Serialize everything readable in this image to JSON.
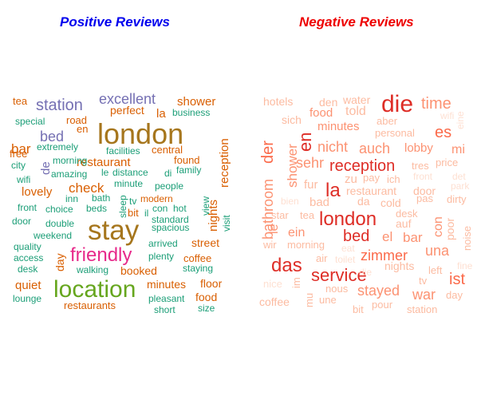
{
  "chart_data": [
    {
      "type": "wordcloud",
      "title": "Positive Reviews",
      "title_color": "#0000ee",
      "palette": {
        "orange": "#d95f02",
        "teal": "#1b9e77",
        "purple": "#7570b3",
        "brown": "#a6761d",
        "olive": "#66a61e",
        "magenta": "#e7298a"
      },
      "words": [
        {
          "text": "london",
          "color": "brown",
          "weight": 36
        },
        {
          "text": "stay",
          "color": "brown",
          "weight": 35
        },
        {
          "text": "location",
          "color": "olive",
          "weight": 30
        },
        {
          "text": "friendly",
          "color": "magenta",
          "weight": 24
        },
        {
          "text": "excellent",
          "color": "purple",
          "weight": 18
        },
        {
          "text": "station",
          "color": "purple",
          "weight": 20
        },
        {
          "text": "bed",
          "color": "purple",
          "weight": 18
        },
        {
          "text": "check",
          "color": "orange",
          "weight": 17
        },
        {
          "text": "restaurant",
          "color": "orange",
          "weight": 15
        },
        {
          "text": "lovely",
          "color": "orange",
          "weight": 15
        },
        {
          "text": "shower",
          "color": "orange",
          "weight": 15
        },
        {
          "text": "reception",
          "color": "orange",
          "weight": 15
        },
        {
          "text": "nights",
          "color": "orange",
          "weight": 15
        },
        {
          "text": "bar",
          "color": "orange",
          "weight": 17
        },
        {
          "text": "quiet",
          "color": "orange",
          "weight": 15
        },
        {
          "text": "perfect",
          "color": "orange",
          "weight": 14
        },
        {
          "text": "la",
          "color": "orange",
          "weight": 15
        },
        {
          "text": "minutes",
          "color": "orange",
          "weight": 14
        },
        {
          "text": "floor",
          "color": "orange",
          "weight": 14
        },
        {
          "text": "booked",
          "color": "orange",
          "weight": 14
        },
        {
          "text": "food",
          "color": "orange",
          "weight": 14
        },
        {
          "text": "street",
          "color": "orange",
          "weight": 14
        },
        {
          "text": "coffee",
          "color": "orange",
          "weight": 13
        },
        {
          "text": "restaurants",
          "color": "orange",
          "weight": 13
        },
        {
          "text": "central",
          "color": "orange",
          "weight": 13
        },
        {
          "text": "found",
          "color": "orange",
          "weight": 13
        },
        {
          "text": "modern",
          "color": "orange",
          "weight": 12
        },
        {
          "text": "tea",
          "color": "orange",
          "weight": 13
        },
        {
          "text": "road",
          "color": "orange",
          "weight": 13
        },
        {
          "text": "en",
          "color": "orange",
          "weight": 13
        },
        {
          "text": "free",
          "color": "orange",
          "weight": 13
        },
        {
          "text": "day",
          "color": "orange",
          "weight": 14
        },
        {
          "text": "bit",
          "color": "orange",
          "weight": 13
        },
        {
          "text": "de",
          "color": "purple",
          "weight": 15
        },
        {
          "text": "business",
          "color": "teal",
          "weight": 12
        },
        {
          "text": "special",
          "color": "teal",
          "weight": 12
        },
        {
          "text": "extremely",
          "color": "teal",
          "weight": 12
        },
        {
          "text": "city",
          "color": "teal",
          "weight": 12
        },
        {
          "text": "morning",
          "color": "teal",
          "weight": 12
        },
        {
          "text": "amazing",
          "color": "teal",
          "weight": 12
        },
        {
          "text": "wifi",
          "color": "teal",
          "weight": 12
        },
        {
          "text": "facilities",
          "color": "teal",
          "weight": 12
        },
        {
          "text": "distance",
          "color": "teal",
          "weight": 12
        },
        {
          "text": "di",
          "color": "teal",
          "weight": 12
        },
        {
          "text": "family",
          "color": "teal",
          "weight": 12
        },
        {
          "text": "le",
          "color": "teal",
          "weight": 12
        },
        {
          "text": "minute",
          "color": "teal",
          "weight": 12
        },
        {
          "text": "people",
          "color": "teal",
          "weight": 12
        },
        {
          "text": "inn",
          "color": "teal",
          "weight": 12
        },
        {
          "text": "bath",
          "color": "teal",
          "weight": 12
        },
        {
          "text": "tv",
          "color": "teal",
          "weight": 12
        },
        {
          "text": "view",
          "color": "teal",
          "weight": 12
        },
        {
          "text": "front",
          "color": "teal",
          "weight": 12
        },
        {
          "text": "choice",
          "color": "teal",
          "weight": 12
        },
        {
          "text": "beds",
          "color": "teal",
          "weight": 12
        },
        {
          "text": "sleep",
          "color": "teal",
          "weight": 12
        },
        {
          "text": "il",
          "color": "teal",
          "weight": 12
        },
        {
          "text": "con",
          "color": "teal",
          "weight": 12
        },
        {
          "text": "hot",
          "color": "teal",
          "weight": 12
        },
        {
          "text": "door",
          "color": "teal",
          "weight": 12
        },
        {
          "text": "double",
          "color": "teal",
          "weight": 12
        },
        {
          "text": "standard",
          "color": "teal",
          "weight": 12
        },
        {
          "text": "visit",
          "color": "teal",
          "weight": 12
        },
        {
          "text": "weekend",
          "color": "teal",
          "weight": 12
        },
        {
          "text": "spacious",
          "color": "teal",
          "weight": 12
        },
        {
          "text": "quality",
          "color": "teal",
          "weight": 12
        },
        {
          "text": "arrived",
          "color": "teal",
          "weight": 12
        },
        {
          "text": "access",
          "color": "teal",
          "weight": 12
        },
        {
          "text": "plenty",
          "color": "teal",
          "weight": 12
        },
        {
          "text": "desk",
          "color": "teal",
          "weight": 12
        },
        {
          "text": "walking",
          "color": "teal",
          "weight": 12
        },
        {
          "text": "staying",
          "color": "teal",
          "weight": 12
        },
        {
          "text": "lounge",
          "color": "teal",
          "weight": 12
        },
        {
          "text": "pleasant",
          "color": "teal",
          "weight": 12
        },
        {
          "text": "short",
          "color": "teal",
          "weight": 12
        },
        {
          "text": "size",
          "color": "teal",
          "weight": 12
        }
      ]
    },
    {
      "type": "wordcloud",
      "title": "Negative Reviews",
      "title_color": "#ee0000",
      "palette": {
        "red": "#de2d26",
        "salmon": "#fb6a4a",
        "pink": "#fc9272",
        "light": "#fcbba1",
        "faint": "#fee0d2"
      },
      "words": [
        {
          "text": "die",
          "color": "red",
          "weight": 30
        },
        {
          "text": "london",
          "color": "red",
          "weight": 24
        },
        {
          "text": "la",
          "color": "red",
          "weight": 24
        },
        {
          "text": "en",
          "color": "red",
          "weight": 22
        },
        {
          "text": "das",
          "color": "red",
          "weight": 24
        },
        {
          "text": "service",
          "color": "red",
          "weight": 22
        },
        {
          "text": "bed",
          "color": "red",
          "weight": 20
        },
        {
          "text": "reception",
          "color": "red",
          "weight": 20
        },
        {
          "text": "zimmer",
          "color": "salmon",
          "weight": 18
        },
        {
          "text": "ist",
          "color": "salmon",
          "weight": 20
        },
        {
          "text": "der",
          "color": "salmon",
          "weight": 20
        },
        {
          "text": "es",
          "color": "salmon",
          "weight": 20
        },
        {
          "text": "time",
          "color": "pink",
          "weight": 20
        },
        {
          "text": "nicht",
          "color": "pink",
          "weight": 18
        },
        {
          "text": "auch",
          "color": "pink",
          "weight": 18
        },
        {
          "text": "sehr",
          "color": "pink",
          "weight": 18
        },
        {
          "text": "stayed",
          "color": "pink",
          "weight": 18
        },
        {
          "text": "war",
          "color": "pink",
          "weight": 18
        },
        {
          "text": "una",
          "color": "pink",
          "weight": 18
        },
        {
          "text": "el",
          "color": "pink",
          "weight": 17
        },
        {
          "text": "bar",
          "color": "pink",
          "weight": 17
        },
        {
          "text": "bathroom",
          "color": "pink",
          "weight": 18
        },
        {
          "text": "shower",
          "color": "pink",
          "weight": 17
        },
        {
          "text": "ein",
          "color": "pink",
          "weight": 16
        },
        {
          "text": "con",
          "color": "pink",
          "weight": 16
        },
        {
          "text": "le",
          "color": "pink",
          "weight": 16
        },
        {
          "text": "mi",
          "color": "pink",
          "weight": 16
        },
        {
          "text": "minutes",
          "color": "pink",
          "weight": 15
        },
        {
          "text": "food",
          "color": "pink",
          "weight": 15
        },
        {
          "text": "lobby",
          "color": "pink",
          "weight": 15
        },
        {
          "text": "told",
          "color": "light",
          "weight": 16
        },
        {
          "text": "hotels",
          "color": "light",
          "weight": 14
        },
        {
          "text": "den",
          "color": "light",
          "weight": 14
        },
        {
          "text": "water",
          "color": "light",
          "weight": 14
        },
        {
          "text": "sich",
          "color": "light",
          "weight": 14
        },
        {
          "text": "aber",
          "color": "light",
          "weight": 13
        },
        {
          "text": "personal",
          "color": "light",
          "weight": 13
        },
        {
          "text": "zu",
          "color": "light",
          "weight": 15
        },
        {
          "text": "ich",
          "color": "light",
          "weight": 13
        },
        {
          "text": "pay",
          "color": "light",
          "weight": 13
        },
        {
          "text": "tres",
          "color": "light",
          "weight": 13
        },
        {
          "text": "price",
          "color": "light",
          "weight": 13
        },
        {
          "text": "fur",
          "color": "light",
          "weight": 15
        },
        {
          "text": "restaurant",
          "color": "light",
          "weight": 14
        },
        {
          "text": "door",
          "color": "light",
          "weight": 14
        },
        {
          "text": "pas",
          "color": "light",
          "weight": 13
        },
        {
          "text": "dirty",
          "color": "light",
          "weight": 13
        },
        {
          "text": "bad",
          "color": "light",
          "weight": 15
        },
        {
          "text": "da",
          "color": "light",
          "weight": 14
        },
        {
          "text": "cold",
          "color": "light",
          "weight": 14
        },
        {
          "text": "auf",
          "color": "light",
          "weight": 14
        },
        {
          "text": "desk",
          "color": "light",
          "weight": 13
        },
        {
          "text": "star",
          "color": "light",
          "weight": 13
        },
        {
          "text": "tea",
          "color": "light",
          "weight": 13
        },
        {
          "text": "poor",
          "color": "light",
          "weight": 14
        },
        {
          "text": "noise",
          "color": "light",
          "weight": 13
        },
        {
          "text": "wir",
          "color": "light",
          "weight": 13
        },
        {
          "text": "morning",
          "color": "light",
          "weight": 13
        },
        {
          "text": "air",
          "color": "light",
          "weight": 13
        },
        {
          "text": "im",
          "color": "light",
          "weight": 13
        },
        {
          "text": "nights",
          "color": "light",
          "weight": 14
        },
        {
          "text": "left",
          "color": "light",
          "weight": 13
        },
        {
          "text": "tv",
          "color": "light",
          "weight": 13
        },
        {
          "text": "day",
          "color": "light",
          "weight": 13
        },
        {
          "text": "mu",
          "color": "light",
          "weight": 13
        },
        {
          "text": "une",
          "color": "light",
          "weight": 13
        },
        {
          "text": "nous",
          "color": "light",
          "weight": 13
        },
        {
          "text": "pour",
          "color": "light",
          "weight": 13
        },
        {
          "text": "bit",
          "color": "light",
          "weight": 13
        },
        {
          "text": "station",
          "color": "light",
          "weight": 13
        },
        {
          "text": "coffee",
          "color": "light",
          "weight": 14
        },
        {
          "text": "nice",
          "color": "faint",
          "weight": 13
        },
        {
          "text": "wifi",
          "color": "faint",
          "weight": 12
        },
        {
          "text": "eine",
          "color": "faint",
          "weight": 12
        },
        {
          "text": "front",
          "color": "faint",
          "weight": 12
        },
        {
          "text": "det",
          "color": "faint",
          "weight": 12
        },
        {
          "text": "park",
          "color": "faint",
          "weight": 12
        },
        {
          "text": "bien",
          "color": "faint",
          "weight": 12
        },
        {
          "text": "toilet",
          "color": "faint",
          "weight": 12
        },
        {
          "text": "eat",
          "color": "faint",
          "weight": 12
        },
        {
          "text": "fine",
          "color": "faint",
          "weight": 12
        },
        {
          "text": "die",
          "color": "faint",
          "weight": 12
        }
      ]
    }
  ]
}
